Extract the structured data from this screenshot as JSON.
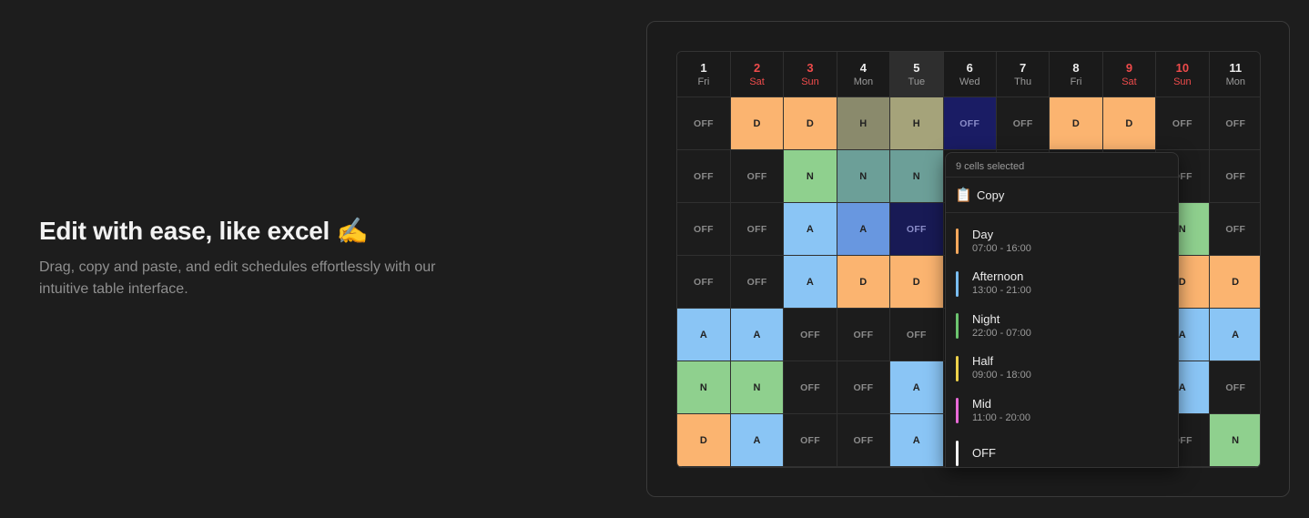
{
  "hero": {
    "title": "Edit with ease, like excel ✍️",
    "description": "Drag, copy and paste, and edit schedules effortlessly with our intuitive table interface."
  },
  "grid": {
    "days": [
      {
        "num": "1",
        "dow": "Fri",
        "weekend": false,
        "today": false
      },
      {
        "num": "2",
        "dow": "Sat",
        "weekend": true,
        "today": false
      },
      {
        "num": "3",
        "dow": "Sun",
        "weekend": true,
        "today": false
      },
      {
        "num": "4",
        "dow": "Mon",
        "weekend": false,
        "today": false
      },
      {
        "num": "5",
        "dow": "Tue",
        "weekend": false,
        "today": true
      },
      {
        "num": "6",
        "dow": "Wed",
        "weekend": false,
        "today": false
      },
      {
        "num": "7",
        "dow": "Thu",
        "weekend": false,
        "today": false
      },
      {
        "num": "8",
        "dow": "Fri",
        "weekend": false,
        "today": false
      },
      {
        "num": "9",
        "dow": "Sat",
        "weekend": true,
        "today": false
      },
      {
        "num": "10",
        "dow": "Sun",
        "weekend": true,
        "today": false
      },
      {
        "num": "11",
        "dow": "Mon",
        "weekend": false,
        "today": false
      }
    ],
    "rows": [
      [
        [
          "OFF",
          "off"
        ],
        [
          "D",
          "D"
        ],
        [
          "D",
          "D"
        ],
        [
          "H",
          "HS"
        ],
        [
          "H",
          "H"
        ],
        [
          "OFF",
          "selOff"
        ],
        [
          "OFF",
          "off"
        ],
        [
          "D",
          "D"
        ],
        [
          "D",
          "D"
        ],
        [
          "OFF",
          "off"
        ],
        [
          "OFF",
          "off"
        ]
      ],
      [
        [
          "OFF",
          "off"
        ],
        [
          "OFF",
          "off"
        ],
        [
          "N",
          "N"
        ],
        [
          "N",
          "NS"
        ],
        [
          "N",
          "NS"
        ],
        [
          "",
          ""
        ],
        [
          "",
          ""
        ],
        [
          "",
          ""
        ],
        [
          "",
          ""
        ],
        [
          "OFF",
          "off"
        ],
        [
          "OFF",
          "off"
        ]
      ],
      [
        [
          "OFF",
          "off"
        ],
        [
          "OFF",
          "off"
        ],
        [
          "A",
          "A"
        ],
        [
          "A",
          "AS"
        ],
        [
          "OFF",
          "selOffB"
        ],
        [
          "",
          ""
        ],
        [
          "",
          ""
        ],
        [
          "",
          ""
        ],
        [
          "",
          ""
        ],
        [
          "N",
          "N"
        ],
        [
          "OFF",
          "off"
        ]
      ],
      [
        [
          "OFF",
          "off"
        ],
        [
          "OFF",
          "off"
        ],
        [
          "A",
          "A"
        ],
        [
          "D",
          "D"
        ],
        [
          "D",
          "D"
        ],
        [
          "",
          ""
        ],
        [
          "",
          ""
        ],
        [
          "",
          ""
        ],
        [
          "",
          ""
        ],
        [
          "D",
          "D"
        ],
        [
          "D",
          "D"
        ]
      ],
      [
        [
          "A",
          "A"
        ],
        [
          "A",
          "A"
        ],
        [
          "OFF",
          "off"
        ],
        [
          "OFF",
          "off"
        ],
        [
          "OFF",
          "off"
        ],
        [
          "",
          ""
        ],
        [
          "",
          ""
        ],
        [
          "",
          ""
        ],
        [
          "",
          ""
        ],
        [
          "A",
          "A"
        ],
        [
          "A",
          "A"
        ]
      ],
      [
        [
          "N",
          "N"
        ],
        [
          "N",
          "N"
        ],
        [
          "OFF",
          "off"
        ],
        [
          "OFF",
          "off"
        ],
        [
          "A",
          "A"
        ],
        [
          "",
          ""
        ],
        [
          "",
          ""
        ],
        [
          "",
          ""
        ],
        [
          "",
          ""
        ],
        [
          "A",
          "A"
        ],
        [
          "OFF",
          "off"
        ]
      ],
      [
        [
          "D",
          "D"
        ],
        [
          "A",
          "A"
        ],
        [
          "OFF",
          "off"
        ],
        [
          "OFF",
          "off"
        ],
        [
          "A",
          "A"
        ],
        [
          "",
          ""
        ],
        [
          "",
          ""
        ],
        [
          "",
          ""
        ],
        [
          "",
          ""
        ],
        [
          "OFF",
          "off"
        ],
        [
          "N",
          "N"
        ]
      ]
    ]
  },
  "menu": {
    "selected_label": "9 cells selected",
    "copy_icon": "📋",
    "copy_label": "Copy",
    "shifts": [
      {
        "name": "Day",
        "time": "07:00 - 16:00",
        "color": "#f6a85c"
      },
      {
        "name": "Afternoon",
        "time": "13:00 - 21:00",
        "color": "#79bdf1"
      },
      {
        "name": "Night",
        "time": "22:00 - 07:00",
        "color": "#6cc46f"
      },
      {
        "name": "Half",
        "time": "09:00 - 18:00",
        "color": "#eed24a"
      },
      {
        "name": "Mid",
        "time": "11:00 - 20:00",
        "color": "#e86ad7"
      },
      {
        "name": "OFF",
        "time": "",
        "color": "#f2f2f2"
      }
    ]
  }
}
